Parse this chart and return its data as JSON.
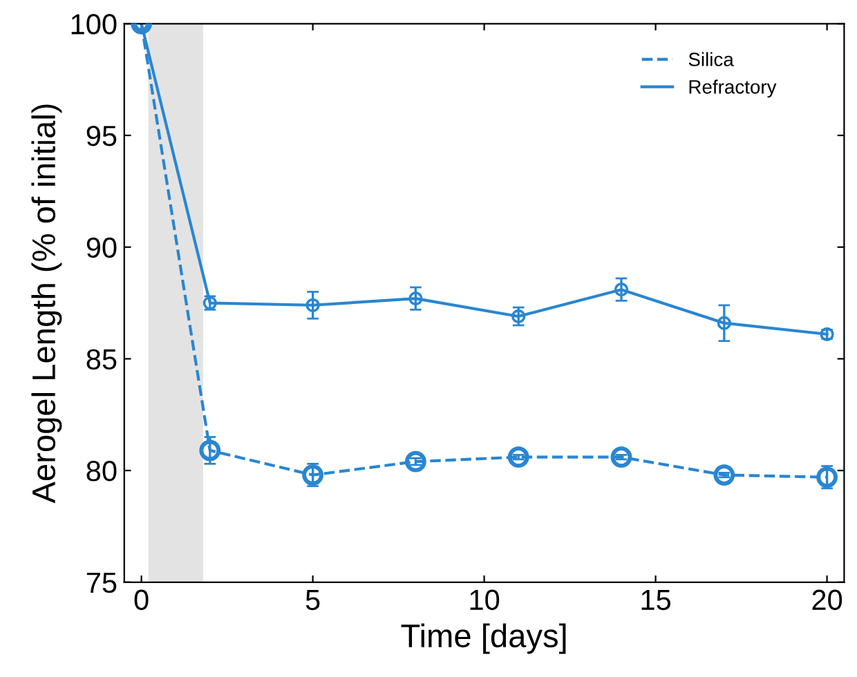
{
  "chart_data": {
    "type": "line",
    "xlabel": "Time [days]",
    "ylabel": "Aerogel Length (% of initial)",
    "x": [
      0,
      2,
      5,
      8,
      11,
      14,
      17,
      20
    ],
    "series": [
      {
        "name": "Silica",
        "color": "#2a86d1",
        "line_style": "dashed",
        "values": [
          100,
          80.9,
          79.8,
          80.4,
          80.6,
          80.6,
          79.8,
          79.7
        ],
        "errors": [
          null,
          0.6,
          0.5,
          0.15,
          0.1,
          0.1,
          0.1,
          0.5
        ]
      },
      {
        "name": "Refractory",
        "color": "#2a86d1",
        "line_style": "solid",
        "values": [
          100,
          87.5,
          87.4,
          87.7,
          86.9,
          88.1,
          86.6,
          86.1
        ],
        "errors": [
          null,
          0.3,
          0.6,
          0.5,
          0.4,
          0.5,
          0.8,
          0.2
        ]
      }
    ],
    "bands": [
      {
        "axis": "x",
        "from": 0.2,
        "to": 1.8,
        "color": "#e3e3e3"
      }
    ],
    "xlim": [
      -0.5,
      20.5
    ],
    "ylim": [
      75,
      100
    ],
    "xticks": [
      0,
      5,
      10,
      15,
      20
    ],
    "yticks": [
      75,
      80,
      85,
      90,
      95,
      100
    ],
    "marker": "circle",
    "grid": false,
    "legend": "top right"
  }
}
